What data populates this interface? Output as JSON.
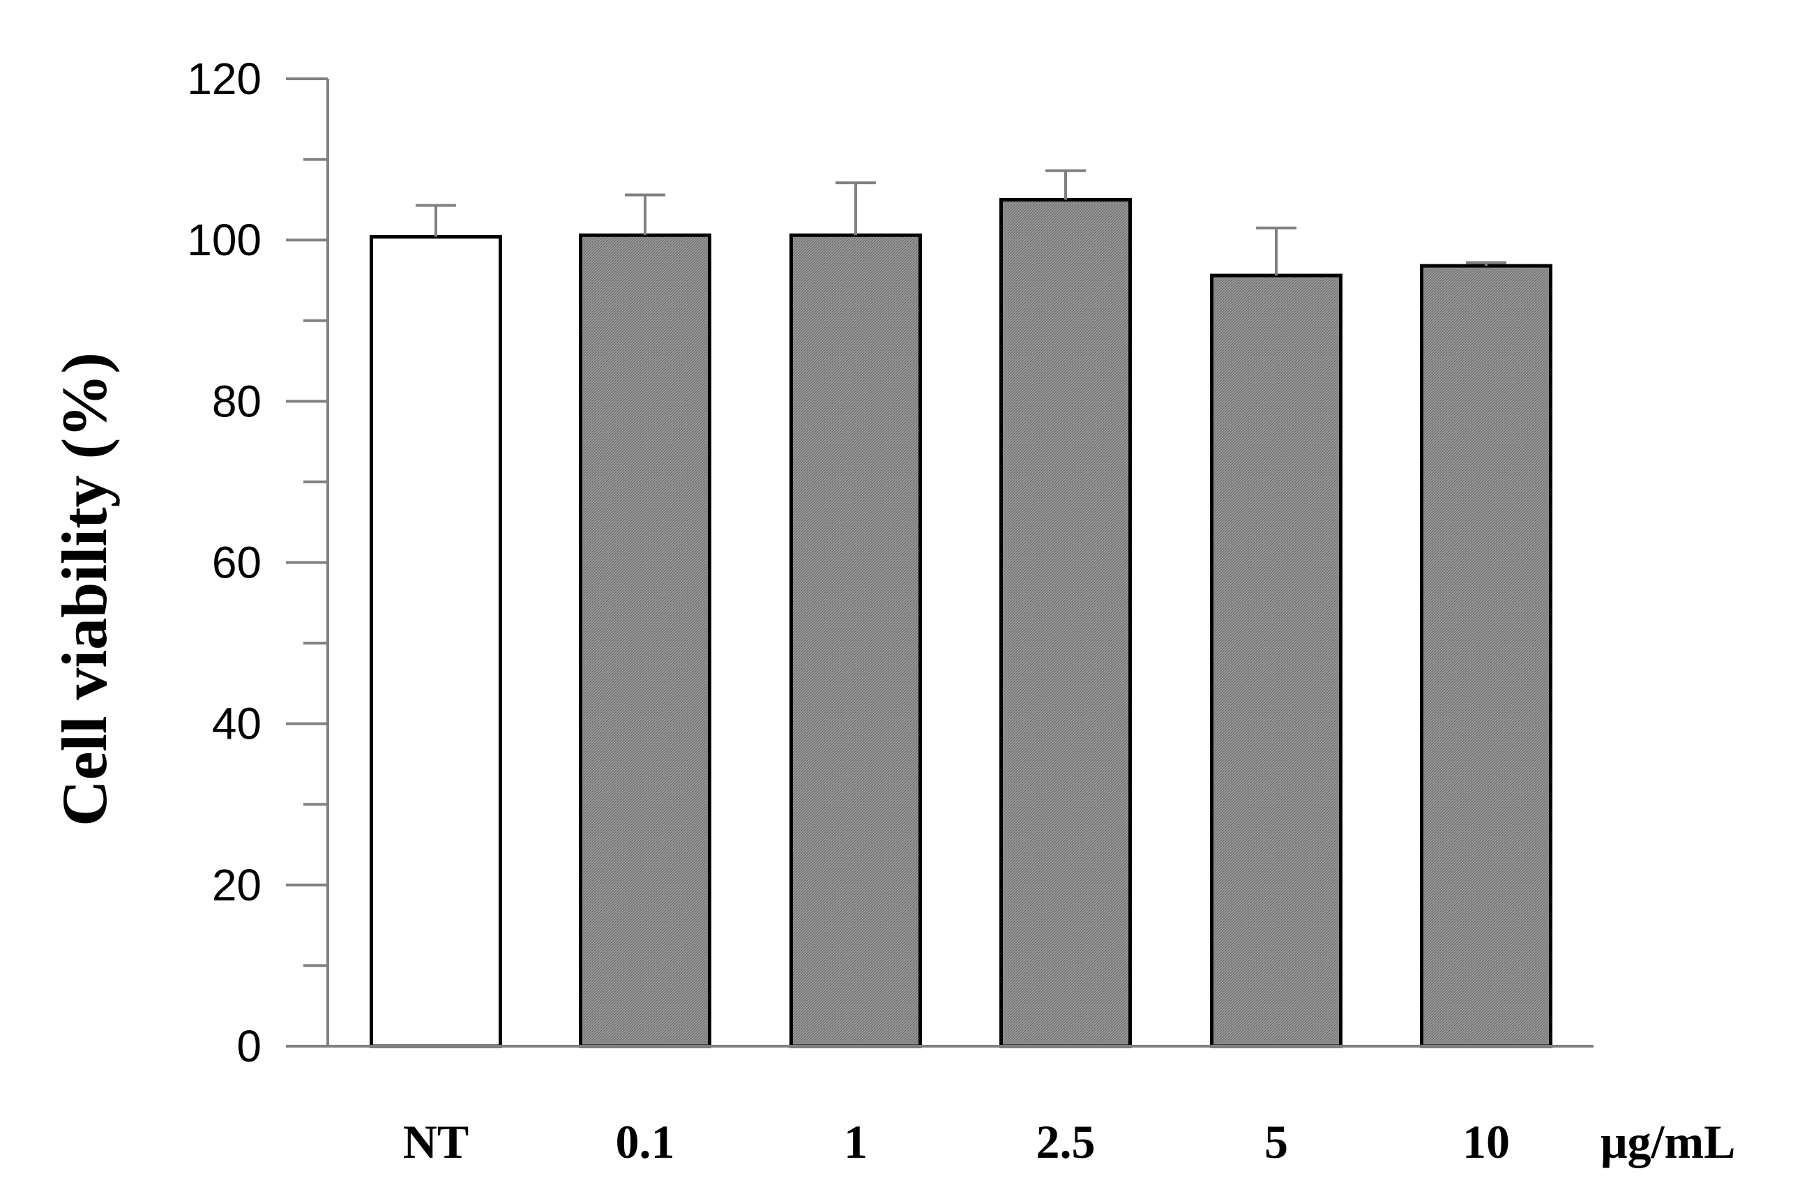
{
  "chart_data": {
    "type": "bar",
    "title": "",
    "xlabel": "",
    "ylabel": "Cell viability (%)",
    "x_unit": "μg/mL",
    "categories": [
      "NT",
      "0.1",
      "1",
      "2.5",
      "5",
      "10"
    ],
    "values": [
      100.4,
      100.6,
      100.6,
      105.0,
      95.6,
      96.8
    ],
    "error_upper": [
      104.3,
      105.6,
      107.1,
      108.6,
      101.5,
      97.2
    ],
    "bar_fills": [
      "#ffffff",
      "#8c8c8c",
      "#8c8c8c",
      "#8c8c8c",
      "#8c8c8c",
      "#8c8c8c"
    ],
    "ylim": [
      0,
      120
    ],
    "yticks": [
      0,
      20,
      40,
      60,
      80,
      100,
      120
    ],
    "yticks_minor": [
      10,
      30,
      50,
      70,
      90,
      110
    ],
    "grid": false,
    "legend": "none"
  }
}
